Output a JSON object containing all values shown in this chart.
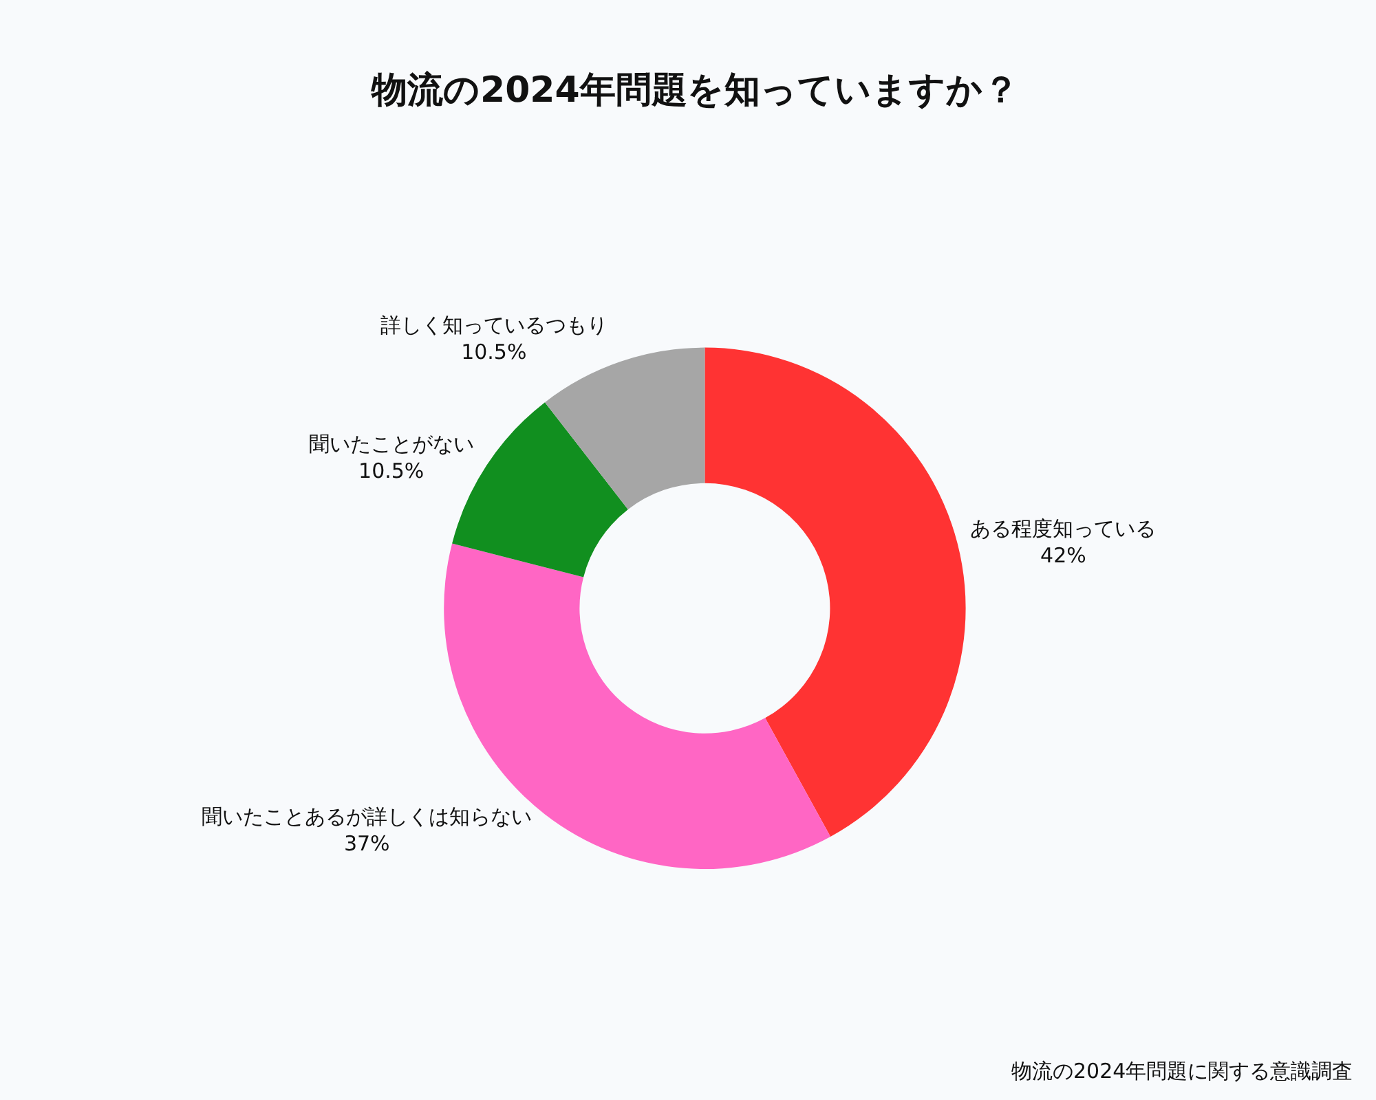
{
  "chart_data": {
    "type": "donut",
    "title": "物流の2024年問題を知っていますか？",
    "categories": [
      "ある程度知っている",
      "聞いたことあるが詳しくは知らない",
      "聞いたことがない",
      "詳しく知っているつもり"
    ],
    "values": [
      42,
      37,
      10.5,
      10.5
    ],
    "value_labels": [
      "42%",
      "37%",
      "10.5%",
      "10.5%"
    ],
    "colors": [
      "#ff3333",
      "#ff66c4",
      "#118f1f",
      "#a6a6a6"
    ],
    "legend": false,
    "annotations": [
      "物流の2024年問題に関する意識調査"
    ]
  }
}
